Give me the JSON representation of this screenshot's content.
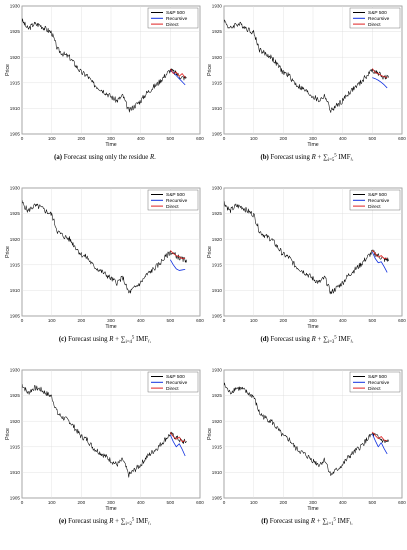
{
  "colors": {
    "sp500": "#000000",
    "recursive": "#1030e0",
    "direct": "#e02020",
    "grid": "#dcdcdc",
    "axis": "#333333"
  },
  "chart_data": [
    {
      "type": "line",
      "caption": {
        "tag": "(a)",
        "text": "Forecast using only the residue ",
        "sym": "R",
        "tail": "."
      },
      "xlabel": "Time",
      "ylabel": "Price",
      "xlim": [
        0,
        600
      ],
      "ylim": [
        1905,
        1930
      ],
      "xticks": [
        0,
        100,
        200,
        300,
        400,
        500,
        600
      ],
      "yticks": [
        1905,
        1910,
        1915,
        1920,
        1925,
        1930
      ],
      "grid": true,
      "legend": {
        "placement": "top-right",
        "entries": [
          "S&P 500",
          "Recursive",
          "Direct"
        ]
      },
      "series": [
        {
          "name": "S&P 500",
          "x": [
            0,
            20,
            40,
            60,
            80,
            100,
            120,
            140,
            160,
            180,
            200,
            220,
            240,
            260,
            280,
            300,
            320,
            340,
            360,
            380,
            400,
            420,
            440,
            460,
            480,
            500,
            520,
            540,
            555
          ],
          "y": [
            1927.2,
            1925.5,
            1926.5,
            1926.3,
            1925.5,
            1924.8,
            1921.5,
            1920.6,
            1920.0,
            1918.5,
            1917.0,
            1916.4,
            1914.8,
            1914.0,
            1913.2,
            1912.3,
            1911.5,
            1912.5,
            1909.5,
            1910.5,
            1911.5,
            1913.0,
            1914.0,
            1915.0,
            1916.3,
            1917.5,
            1916.8,
            1916.0,
            1916.0
          ]
        },
        {
          "name": "Recursive",
          "x": [
            500,
            510,
            520,
            530,
            540,
            550
          ],
          "y": [
            1917.4,
            1917.0,
            1916.4,
            1915.8,
            1915.2,
            1914.6
          ]
        },
        {
          "name": "Direct",
          "x": [
            500,
            510,
            520,
            530,
            540,
            550
          ],
          "y": [
            1917.7,
            1916.8,
            1917.1,
            1916.3,
            1916.8,
            1916.0
          ]
        }
      ]
    },
    {
      "type": "line",
      "caption": {
        "tag": "(b)",
        "text": "Forecast using ",
        "sym": "R",
        "sum": "+ ∑",
        "sup": "5",
        "sub": "i=5",
        "imf": " IMF",
        "isub": "i",
        "tail": "."
      },
      "xlabel": "Time",
      "ylabel": "Price",
      "xlim": [
        0,
        600
      ],
      "ylim": [
        1905,
        1930
      ],
      "xticks": [
        0,
        100,
        200,
        300,
        400,
        500,
        600
      ],
      "yticks": [
        1905,
        1910,
        1915,
        1920,
        1925,
        1930
      ],
      "grid": true,
      "legend": {
        "placement": "top-right",
        "entries": [
          "S&P 500",
          "Recursive",
          "Direct"
        ]
      },
      "series": [
        {
          "name": "S&P 500",
          "x": [
            0,
            20,
            40,
            60,
            80,
            100,
            120,
            140,
            160,
            180,
            200,
            220,
            240,
            260,
            280,
            300,
            320,
            340,
            360,
            380,
            400,
            420,
            440,
            460,
            480,
            500,
            520,
            540,
            555
          ],
          "y": [
            1927.2,
            1925.5,
            1926.5,
            1926.3,
            1925.5,
            1924.8,
            1921.5,
            1920.6,
            1920.0,
            1918.5,
            1917.0,
            1916.4,
            1914.8,
            1914.0,
            1913.2,
            1912.3,
            1911.5,
            1912.5,
            1909.5,
            1910.5,
            1911.5,
            1913.0,
            1914.0,
            1915.0,
            1916.3,
            1917.5,
            1916.8,
            1916.0,
            1916.0
          ]
        },
        {
          "name": "Recursive",
          "x": [
            500,
            510,
            520,
            530,
            540,
            550
          ],
          "y": [
            1916.0,
            1915.8,
            1915.5,
            1915.1,
            1914.6,
            1914.0
          ]
        },
        {
          "name": "Direct",
          "x": [
            500,
            510,
            520,
            530,
            540,
            550
          ],
          "y": [
            1917.8,
            1917.0,
            1916.8,
            1916.4,
            1916.2,
            1916.0
          ]
        }
      ]
    },
    {
      "type": "line",
      "caption": {
        "tag": "(c)",
        "text": "Forecast using ",
        "sym": "R",
        "sum": "+ ∑",
        "sup": "5",
        "sub": "i=4",
        "imf": " IMF",
        "isub": "i",
        "tail": "."
      },
      "xlabel": "Time",
      "ylabel": "Price",
      "xlim": [
        0,
        600
      ],
      "ylim": [
        1905,
        1930
      ],
      "xticks": [
        0,
        100,
        200,
        300,
        400,
        500,
        600
      ],
      "yticks": [
        1905,
        1910,
        1915,
        1920,
        1925,
        1930
      ],
      "grid": true,
      "legend": {
        "placement": "top-right",
        "entries": [
          "S&P 500",
          "Recursive",
          "Direct"
        ]
      },
      "series": [
        {
          "name": "S&P 500",
          "x": [
            0,
            20,
            40,
            60,
            80,
            100,
            120,
            140,
            160,
            180,
            200,
            220,
            240,
            260,
            280,
            300,
            320,
            340,
            360,
            380,
            400,
            420,
            440,
            460,
            480,
            500,
            520,
            540,
            555
          ],
          "y": [
            1927.2,
            1925.5,
            1926.5,
            1926.3,
            1925.5,
            1924.8,
            1921.5,
            1920.6,
            1920.0,
            1918.5,
            1917.0,
            1916.4,
            1914.8,
            1914.0,
            1913.2,
            1912.3,
            1911.5,
            1912.5,
            1909.5,
            1910.5,
            1911.5,
            1913.0,
            1914.0,
            1915.0,
            1916.3,
            1917.5,
            1916.8,
            1916.0,
            1916.0
          ]
        },
        {
          "name": "Recursive",
          "x": [
            500,
            510,
            520,
            530,
            540,
            550
          ],
          "y": [
            1916.0,
            1915.0,
            1914.2,
            1913.9,
            1914.0,
            1914.1
          ]
        },
        {
          "name": "Direct",
          "x": [
            500,
            510,
            520,
            530,
            540,
            550
          ],
          "y": [
            1917.8,
            1917.2,
            1916.8,
            1916.6,
            1916.2,
            1916.3
          ]
        }
      ]
    },
    {
      "type": "line",
      "caption": {
        "tag": "(d)",
        "text": "Forecast using ",
        "sym": "R",
        "sum": "+ ∑",
        "sup": "5",
        "sub": "i=3",
        "imf": " IMF",
        "isub": "i",
        "tail": "."
      },
      "xlabel": "Time",
      "ylabel": "Price",
      "xlim": [
        0,
        600
      ],
      "ylim": [
        1905,
        1930
      ],
      "xticks": [
        0,
        100,
        200,
        300,
        400,
        500,
        600
      ],
      "yticks": [
        1905,
        1910,
        1915,
        1920,
        1925,
        1930
      ],
      "grid": true,
      "legend": {
        "placement": "top-right",
        "entries": [
          "S&P 500",
          "Recursive",
          "Direct"
        ]
      },
      "series": [
        {
          "name": "S&P 500",
          "x": [
            0,
            20,
            40,
            60,
            80,
            100,
            120,
            140,
            160,
            180,
            200,
            220,
            240,
            260,
            280,
            300,
            320,
            340,
            360,
            380,
            400,
            420,
            440,
            460,
            480,
            500,
            520,
            540,
            555
          ],
          "y": [
            1927.2,
            1925.5,
            1926.5,
            1926.3,
            1925.5,
            1924.8,
            1921.5,
            1920.6,
            1920.0,
            1918.5,
            1917.0,
            1916.4,
            1914.8,
            1914.0,
            1913.2,
            1912.3,
            1911.5,
            1912.5,
            1909.5,
            1910.5,
            1911.5,
            1913.0,
            1914.0,
            1915.0,
            1916.3,
            1917.5,
            1916.8,
            1916.0,
            1916.0
          ]
        },
        {
          "name": "Recursive",
          "x": [
            500,
            510,
            520,
            530,
            540,
            550
          ],
          "y": [
            1917.5,
            1916.2,
            1915.4,
            1915.6,
            1914.6,
            1913.5
          ]
        },
        {
          "name": "Direct",
          "x": [
            500,
            510,
            520,
            530,
            540,
            550
          ],
          "y": [
            1917.8,
            1917.2,
            1916.5,
            1916.8,
            1916.2,
            1916.3
          ]
        }
      ]
    },
    {
      "type": "line",
      "caption": {
        "tag": "(e)",
        "text": "Forecast using ",
        "sym": "R",
        "sum": "+ ∑",
        "sup": "5",
        "sub": "i=2",
        "imf": " IMF",
        "isub": "i",
        "tail": "."
      },
      "xlabel": "Time",
      "ylabel": "Price",
      "xlim": [
        0,
        600
      ],
      "ylim": [
        1905,
        1930
      ],
      "xticks": [
        0,
        100,
        200,
        300,
        400,
        500,
        600
      ],
      "yticks": [
        1905,
        1910,
        1915,
        1920,
        1925,
        1930
      ],
      "grid": true,
      "legend": {
        "placement": "top-right",
        "entries": [
          "S&P 500",
          "Recursive",
          "Direct"
        ]
      },
      "series": [
        {
          "name": "S&P 500",
          "x": [
            0,
            20,
            40,
            60,
            80,
            100,
            120,
            140,
            160,
            180,
            200,
            220,
            240,
            260,
            280,
            300,
            320,
            340,
            360,
            380,
            400,
            420,
            440,
            460,
            480,
            500,
            520,
            540,
            555
          ],
          "y": [
            1927.2,
            1925.5,
            1926.5,
            1926.3,
            1925.5,
            1924.8,
            1921.5,
            1920.6,
            1920.0,
            1918.5,
            1917.0,
            1916.4,
            1914.8,
            1914.0,
            1913.2,
            1912.3,
            1911.5,
            1912.5,
            1909.5,
            1910.5,
            1911.5,
            1913.0,
            1914.0,
            1915.0,
            1916.3,
            1917.5,
            1916.8,
            1916.0,
            1916.0
          ]
        },
        {
          "name": "Recursive",
          "x": [
            500,
            510,
            520,
            530,
            540,
            550
          ],
          "y": [
            1917.3,
            1916.0,
            1915.0,
            1915.6,
            1914.5,
            1913.2
          ]
        },
        {
          "name": "Direct",
          "x": [
            500,
            510,
            520,
            530,
            540,
            550
          ],
          "y": [
            1917.8,
            1917.0,
            1916.5,
            1916.9,
            1916.0,
            1916.2
          ]
        }
      ]
    },
    {
      "type": "line",
      "caption": {
        "tag": "(f)",
        "text": "Forecast using ",
        "sym": "R",
        "sum": "+ ∑",
        "sup": "5",
        "sub": "i=1",
        "imf": " IMF",
        "isub": "i",
        "tail": "."
      },
      "xlabel": "Time",
      "ylabel": "Price",
      "xlim": [
        0,
        600
      ],
      "ylim": [
        1905,
        1930
      ],
      "xticks": [
        0,
        100,
        200,
        300,
        400,
        500,
        600
      ],
      "yticks": [
        1905,
        1910,
        1915,
        1920,
        1925,
        1930
      ],
      "grid": true,
      "legend": {
        "placement": "top-right",
        "entries": [
          "S&P 500",
          "Recursive",
          "Direct"
        ]
      },
      "series": [
        {
          "name": "S&P 500",
          "x": [
            0,
            20,
            40,
            60,
            80,
            100,
            120,
            140,
            160,
            180,
            200,
            220,
            240,
            260,
            280,
            300,
            320,
            340,
            360,
            380,
            400,
            420,
            440,
            460,
            480,
            500,
            520,
            540,
            555
          ],
          "y": [
            1927.2,
            1925.5,
            1926.5,
            1926.3,
            1925.5,
            1924.8,
            1921.5,
            1920.6,
            1920.0,
            1918.5,
            1917.0,
            1916.4,
            1914.8,
            1914.0,
            1913.2,
            1912.3,
            1911.5,
            1912.5,
            1909.5,
            1910.5,
            1911.5,
            1913.0,
            1914.0,
            1915.0,
            1916.3,
            1917.5,
            1916.8,
            1916.0,
            1916.0
          ]
        },
        {
          "name": "Recursive",
          "x": [
            500,
            510,
            520,
            530,
            540,
            550
          ],
          "y": [
            1917.5,
            1916.2,
            1915.0,
            1915.8,
            1914.6,
            1913.6
          ]
        },
        {
          "name": "Direct",
          "x": [
            500,
            510,
            520,
            530,
            540,
            550
          ],
          "y": [
            1917.9,
            1917.2,
            1916.6,
            1917.0,
            1916.3,
            1916.2
          ]
        }
      ]
    }
  ]
}
